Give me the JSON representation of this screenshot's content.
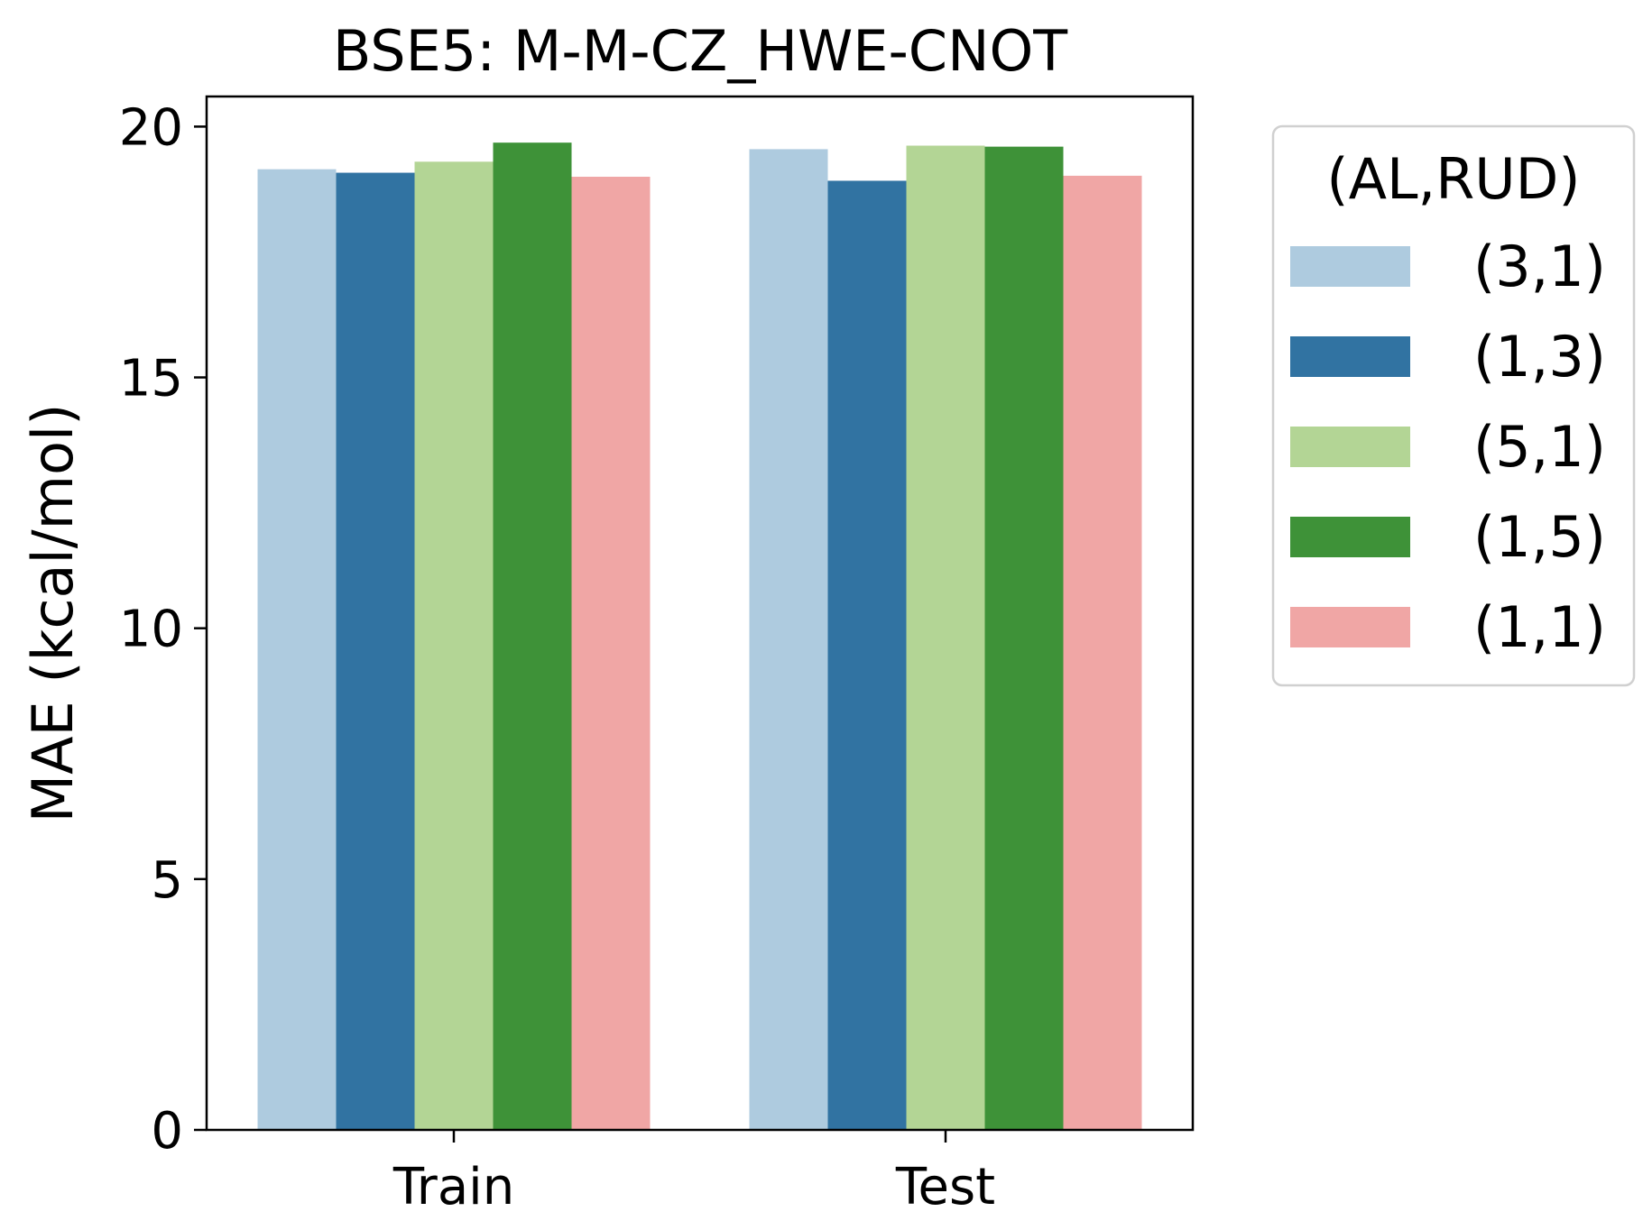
{
  "chart_data": {
    "type": "bar",
    "title": "BSE5: M-M-CZ_HWE-CNOT",
    "xlabel": "",
    "ylabel": "MAE (kcal/mol)",
    "ylim": [
      0,
      20.6
    ],
    "yticks": [
      0,
      5,
      10,
      15,
      20
    ],
    "categories": [
      "Train",
      "Test"
    ],
    "grid": false,
    "legend": {
      "title": "(AL,RUD)",
      "placement": "outside-right-top"
    },
    "series": [
      {
        "name": "(3,1)",
        "color": "#aecbdf",
        "values": [
          19.15,
          19.55
        ]
      },
      {
        "name": "(1,3)",
        "color": "#3173a2",
        "values": [
          19.08,
          18.92
        ]
      },
      {
        "name": "(5,1)",
        "color": "#b3d595",
        "values": [
          19.3,
          19.62
        ]
      },
      {
        "name": "(1,5)",
        "color": "#3e9238",
        "values": [
          19.68,
          19.6
        ]
      },
      {
        "name": "(1,1)",
        "color": "#f0a6a5",
        "values": [
          19.0,
          19.02
        ]
      }
    ]
  }
}
